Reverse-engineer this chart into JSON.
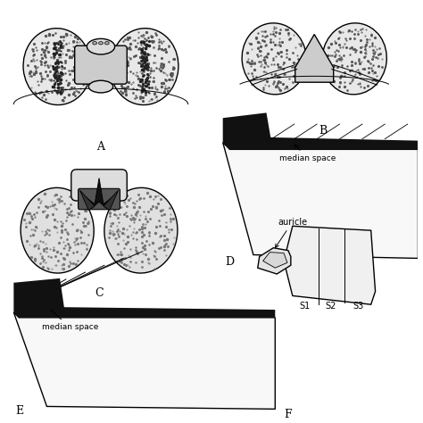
{
  "background_color": "#ffffff",
  "label_A": "A",
  "label_B": "B",
  "label_C": "C",
  "label_D": "D",
  "label_E": "E",
  "label_F": "F",
  "text_median_space_D": "median space",
  "text_median_space_E": "median space",
  "text_auricle": "auricle",
  "text_S1": "S1",
  "text_S2": "S2",
  "text_S3": "S3",
  "line_color": "#000000"
}
